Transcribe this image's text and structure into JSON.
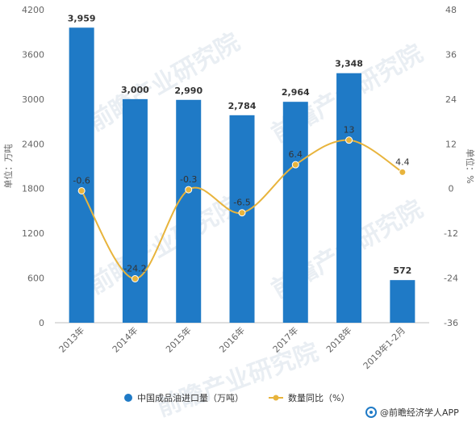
{
  "chart_data": {
    "type": "bar",
    "categories": [
      "2013年",
      "2014年",
      "2015年",
      "2016年",
      "2017年",
      "2018年",
      "2019年1-2月"
    ],
    "series": [
      {
        "name": "中国成品油进口量（万吨）",
        "type": "bar",
        "axis": "left",
        "values": [
          3959,
          3000,
          2990,
          2784,
          2964,
          3348,
          572
        ],
        "labels": [
          "3,959",
          "3,000",
          "2,990",
          "2,784",
          "2,964",
          "3,348",
          "572"
        ],
        "color": "#1f7ac6"
      },
      {
        "name": "数量同比（%）",
        "type": "line",
        "axis": "right",
        "values": [
          -0.6,
          -24.2,
          -0.3,
          -6.5,
          6.4,
          13,
          4.4
        ],
        "labels": [
          "-0.6",
          "-24.2",
          "-0.3",
          "-6.5",
          "6.4",
          "13",
          "4.4"
        ],
        "color": "#e8b43c"
      }
    ],
    "ylabel": "单位：万吨",
    "y2label": "单位：%",
    "ylim": [
      0,
      4200
    ],
    "y_ticks": [
      0,
      600,
      1200,
      1800,
      2400,
      3000,
      3600,
      4200
    ],
    "y2lim": [
      -36,
      48
    ],
    "y2_ticks": [
      -36,
      -24,
      -12,
      0,
      12,
      24,
      36,
      48
    ],
    "grid": false,
    "legend": "bottom"
  },
  "watermark": "前瞻产业研究院",
  "source": "@前瞻经济学人APP"
}
